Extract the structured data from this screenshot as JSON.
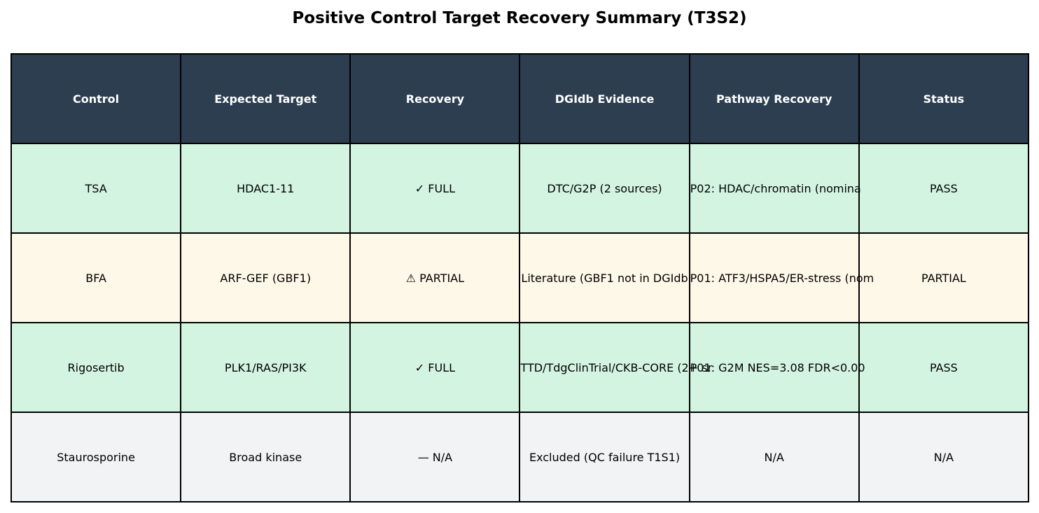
{
  "chart_data": {
    "type": "table",
    "title": "Positive Control Target Recovery Summary (T3S2)",
    "columns": [
      "Control",
      "Expected Target",
      "Recovery",
      "DGIdb Evidence",
      "Pathway Recovery",
      "Status"
    ],
    "rows": [
      {
        "cells": [
          "TSA",
          "HDAC1-11",
          "✓ FULL",
          "DTC/G2P (2 sources)",
          "P02: HDAC/chromatin (nomina",
          "PASS"
        ],
        "fill": "#d4f4e2"
      },
      {
        "cells": [
          "BFA",
          "ARF-GEF (GBF1)",
          "⚠ PARTIAL",
          "Literature (GBF1 not in DGIdb",
          "P01: ATF3/HSPA5/ER-stress (nom",
          "PARTIAL"
        ],
        "fill": "#fdf8e7"
      },
      {
        "cells": [
          "Rigosertib",
          "PLK1/RAS/PI3K",
          "✓ FULL",
          "TTD/TdgClinTrial/CKB-CORE (2+ sr",
          "P01: G2M NES=3.08 FDR<0.00",
          "PASS"
        ],
        "fill": "#d4f4e2"
      },
      {
        "cells": [
          "Staurosporine",
          "Broad kinase",
          "— N/A",
          "Excluded (QC failure T1S1)",
          "N/A",
          "N/A"
        ],
        "fill": "#f2f3f5"
      }
    ],
    "header_fill": "#2d3e50",
    "border_color": "#000000"
  }
}
